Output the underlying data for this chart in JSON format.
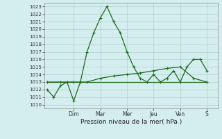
{
  "title": "",
  "xlabel": "Pression niveau de la mer( hPa )",
  "ylabel": "",
  "bg_color": "#d4edee",
  "grid_color": "#b0cece",
  "line_color": "#1a6b1a",
  "ylim": [
    1009.5,
    1023.5
  ],
  "yticks": [
    1010,
    1011,
    1012,
    1013,
    1014,
    1015,
    1016,
    1017,
    1018,
    1019,
    1020,
    1021,
    1022,
    1023
  ],
  "day_labels": [
    "Dim",
    "Mar",
    "Mer",
    "Jeu",
    "Ven",
    "S"
  ],
  "day_positions": [
    2,
    4,
    6,
    8,
    10,
    12
  ],
  "xlim": [
    -0.2,
    12.8
  ],
  "series1_x": [
    0,
    0.5,
    1,
    1.5,
    2,
    2.5,
    3,
    3.5,
    4,
    4.5,
    5,
    5.5,
    6,
    6.5,
    7,
    7.5,
    8,
    8.5,
    9,
    9.5,
    10,
    10.5,
    11,
    11.5,
    12
  ],
  "series1_y": [
    1012,
    1011,
    1012.5,
    1013,
    1010.5,
    1013,
    1017,
    1019.5,
    1021.5,
    1023,
    1021,
    1019.5,
    1017,
    1015,
    1013.5,
    1013,
    1014,
    1013,
    1013.5,
    1014.5,
    1013,
    1015,
    1016,
    1016,
    1014.5
  ],
  "series2_x": [
    0,
    12
  ],
  "series2_y": [
    1013,
    1013
  ],
  "series3_x": [
    0,
    1,
    2,
    3,
    4,
    5,
    6,
    7,
    8,
    9,
    10,
    11,
    12
  ],
  "series3_y": [
    1013,
    1013,
    1013,
    1013,
    1013.5,
    1013.8,
    1014,
    1014.2,
    1014.5,
    1014.8,
    1015,
    1013.5,
    1013
  ]
}
